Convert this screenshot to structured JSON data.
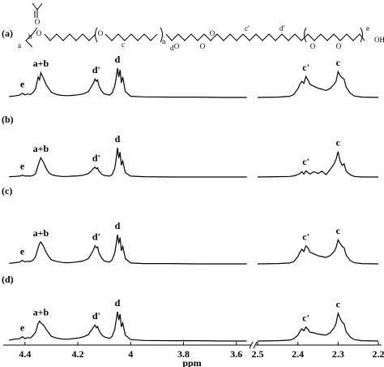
{
  "structure": {
    "atom": "O",
    "hydroxyl": "OH",
    "repeat": "n",
    "labels": {
      "a": "a",
      "b": "b",
      "c": "c",
      "d": "d",
      "c_prime": "c'",
      "d_prime": "d'",
      "e": "e"
    }
  },
  "axis": {
    "xlim": [
      4.47,
      2.2
    ],
    "x_break": [
      3.55,
      2.5
    ],
    "xticks": [
      4.4,
      4.2,
      4.0,
      3.8,
      3.6,
      2.5,
      2.4,
      2.3,
      2.2
    ],
    "xlabel": "ppm"
  },
  "chart_data": [
    {
      "type": "line",
      "label": "(a)",
      "color": "#000000",
      "ylim": [
        0,
        100
      ],
      "x": [
        4.46,
        4.44,
        4.42,
        4.41,
        4.4,
        4.39,
        4.38,
        4.37,
        4.36,
        4.35,
        4.345,
        4.34,
        4.33,
        4.32,
        4.31,
        4.3,
        4.28,
        4.26,
        4.24,
        4.22,
        4.2,
        4.18,
        4.16,
        4.15,
        4.14,
        4.135,
        4.13,
        4.125,
        4.12,
        4.11,
        4.1,
        4.08,
        4.07,
        4.06,
        4.055,
        4.05,
        4.045,
        4.04,
        4.035,
        4.03,
        4.02,
        4.0,
        3.95,
        3.85,
        3.75,
        3.65,
        3.56,
        null,
        2.5,
        2.45,
        2.42,
        2.41,
        2.4,
        2.395,
        2.39,
        2.385,
        2.38,
        2.375,
        2.37,
        2.36,
        2.35,
        2.34,
        2.33,
        2.32,
        2.31,
        2.305,
        2.3,
        2.295,
        2.29,
        2.285,
        2.28,
        2.27,
        2.26,
        2.24,
        2.2
      ],
      "values": [
        3,
        5,
        8,
        14,
        9,
        12,
        10,
        16,
        30,
        70,
        60,
        85,
        65,
        45,
        30,
        18,
        10,
        7,
        6,
        7,
        9,
        12,
        20,
        35,
        50,
        63,
        55,
        60,
        40,
        22,
        12,
        8,
        15,
        40,
        65,
        100,
        70,
        95,
        50,
        70,
        20,
        4,
        2,
        1,
        1,
        0,
        0,
        null,
        0,
        1,
        4,
        10,
        30,
        45,
        55,
        48,
        72,
        60,
        45,
        38,
        32,
        28,
        24,
        30,
        45,
        55,
        88,
        75,
        68,
        62,
        35,
        15,
        5,
        1,
        0
      ],
      "annotations": [
        {
          "text": "e",
          "x": 4.41
        },
        {
          "text": "a+b",
          "x": 4.34
        },
        {
          "text": "d'",
          "x": 4.13
        },
        {
          "text": "d",
          "x": 4.05
        },
        {
          "text": "c'",
          "x": 2.38
        },
        {
          "text": "c",
          "x": 2.3
        }
      ]
    },
    {
      "type": "line",
      "label": "(b)",
      "color": "#000000",
      "ylim": [
        0,
        100
      ],
      "x": [
        4.46,
        4.44,
        4.42,
        4.41,
        4.4,
        4.39,
        4.38,
        4.37,
        4.36,
        4.35,
        4.345,
        4.34,
        4.33,
        4.32,
        4.31,
        4.3,
        4.28,
        4.26,
        4.24,
        4.22,
        4.2,
        4.18,
        4.16,
        4.15,
        4.14,
        4.135,
        4.13,
        4.125,
        4.12,
        4.11,
        4.1,
        4.08,
        4.07,
        4.06,
        4.055,
        4.05,
        4.045,
        4.04,
        4.035,
        4.03,
        4.02,
        4.0,
        3.95,
        3.85,
        3.75,
        3.65,
        3.56,
        null,
        2.5,
        2.45,
        2.42,
        2.41,
        2.4,
        2.395,
        2.39,
        2.385,
        2.38,
        2.375,
        2.37,
        2.36,
        2.35,
        2.34,
        2.33,
        2.32,
        2.31,
        2.305,
        2.3,
        2.295,
        2.29,
        2.285,
        2.28,
        2.27,
        2.26,
        2.24,
        2.2
      ],
      "values": [
        1,
        2,
        3,
        6,
        3,
        4,
        3,
        5,
        12,
        40,
        55,
        66,
        50,
        30,
        15,
        8,
        4,
        2,
        2,
        3,
        4,
        6,
        12,
        20,
        30,
        34,
        28,
        32,
        20,
        10,
        5,
        3,
        8,
        30,
        60,
        100,
        65,
        85,
        40,
        55,
        15,
        3,
        1,
        0,
        0,
        0,
        0,
        null,
        0,
        1,
        2,
        4,
        8,
        12,
        18,
        10,
        21,
        15,
        10,
        18,
        12,
        20,
        8,
        25,
        45,
        60,
        87,
        55,
        40,
        45,
        20,
        8,
        2,
        0,
        0
      ],
      "annotations": [
        {
          "text": "e",
          "x": 4.41
        },
        {
          "text": "a+b",
          "x": 4.34
        },
        {
          "text": "d'",
          "x": 4.13
        },
        {
          "text": "d",
          "x": 4.05
        },
        {
          "text": "c'",
          "x": 2.38
        },
        {
          "text": "c",
          "x": 2.3
        }
      ]
    },
    {
      "type": "line",
      "label": "(c)",
      "color": "#000000",
      "ylim": [
        0,
        100
      ],
      "x": [
        4.46,
        4.44,
        4.42,
        4.41,
        4.4,
        4.39,
        4.38,
        4.37,
        4.36,
        4.35,
        4.345,
        4.34,
        4.33,
        4.32,
        4.31,
        4.3,
        4.28,
        4.26,
        4.24,
        4.22,
        4.2,
        4.18,
        4.16,
        4.15,
        4.14,
        4.135,
        4.13,
        4.125,
        4.12,
        4.11,
        4.1,
        4.08,
        4.07,
        4.06,
        4.055,
        4.05,
        4.045,
        4.04,
        4.035,
        4.03,
        4.02,
        4.0,
        3.95,
        3.85,
        3.75,
        3.65,
        3.56,
        null,
        2.5,
        2.45,
        2.42,
        2.41,
        2.4,
        2.395,
        2.39,
        2.385,
        2.38,
        2.375,
        2.37,
        2.36,
        2.35,
        2.34,
        2.33,
        2.32,
        2.31,
        2.305,
        2.3,
        2.295,
        2.29,
        2.285,
        2.28,
        2.27,
        2.26,
        2.24,
        2.2
      ],
      "values": [
        2,
        4,
        6,
        12,
        7,
        9,
        8,
        12,
        25,
        55,
        70,
        75,
        60,
        40,
        25,
        14,
        8,
        5,
        4,
        5,
        7,
        10,
        18,
        32,
        50,
        62,
        55,
        58,
        38,
        20,
        10,
        6,
        14,
        38,
        65,
        100,
        70,
        90,
        45,
        60,
        18,
        3,
        1,
        1,
        0,
        0,
        0,
        null,
        0,
        1,
        3,
        8,
        25,
        40,
        50,
        42,
        62,
        55,
        40,
        34,
        28,
        25,
        22,
        28,
        42,
        55,
        82,
        70,
        60,
        55,
        30,
        12,
        4,
        1,
        0
      ],
      "annotations": [
        {
          "text": "e",
          "x": 4.41
        },
        {
          "text": "a+b",
          "x": 4.34
        },
        {
          "text": "d'",
          "x": 4.13
        },
        {
          "text": "d",
          "x": 4.05
        },
        {
          "text": "c'",
          "x": 2.38
        },
        {
          "text": "c",
          "x": 2.3
        }
      ]
    },
    {
      "type": "line",
      "label": "(d)",
      "color": "#000000",
      "ylim": [
        0,
        100
      ],
      "x": [
        4.46,
        4.44,
        4.42,
        4.41,
        4.4,
        4.39,
        4.38,
        4.37,
        4.36,
        4.35,
        4.345,
        4.34,
        4.33,
        4.32,
        4.31,
        4.3,
        4.28,
        4.26,
        4.24,
        4.22,
        4.2,
        4.18,
        4.16,
        4.15,
        4.14,
        4.135,
        4.13,
        4.125,
        4.12,
        4.11,
        4.1,
        4.08,
        4.07,
        4.06,
        4.055,
        4.05,
        4.045,
        4.04,
        4.035,
        4.03,
        4.02,
        4.0,
        3.95,
        3.85,
        3.75,
        3.65,
        3.56,
        null,
        2.5,
        2.45,
        2.42,
        2.41,
        2.4,
        2.395,
        2.39,
        2.385,
        2.38,
        2.375,
        2.37,
        2.36,
        2.35,
        2.34,
        2.33,
        2.32,
        2.31,
        2.305,
        2.3,
        2.295,
        2.29,
        2.285,
        2.28,
        2.27,
        2.26,
        2.24,
        2.2
      ],
      "values": [
        3,
        6,
        8,
        15,
        8,
        12,
        10,
        18,
        30,
        60,
        68,
        62,
        55,
        40,
        28,
        16,
        10,
        7,
        6,
        8,
        10,
        14,
        22,
        35,
        48,
        55,
        45,
        50,
        36,
        22,
        14,
        9,
        16,
        40,
        70,
        100,
        72,
        92,
        48,
        62,
        20,
        5,
        2,
        1,
        1,
        0,
        0,
        null,
        0,
        1,
        3,
        8,
        20,
        32,
        42,
        35,
        48,
        40,
        30,
        28,
        24,
        22,
        20,
        28,
        45,
        60,
        95,
        78,
        65,
        58,
        32,
        14,
        5,
        1,
        0
      ],
      "annotations": [
        {
          "text": "e",
          "x": 4.41
        },
        {
          "text": "a+b",
          "x": 4.34
        },
        {
          "text": "d'",
          "x": 4.13
        },
        {
          "text": "d",
          "x": 4.05
        },
        {
          "text": "c'",
          "x": 2.38
        },
        {
          "text": "c",
          "x": 2.3
        }
      ]
    }
  ]
}
